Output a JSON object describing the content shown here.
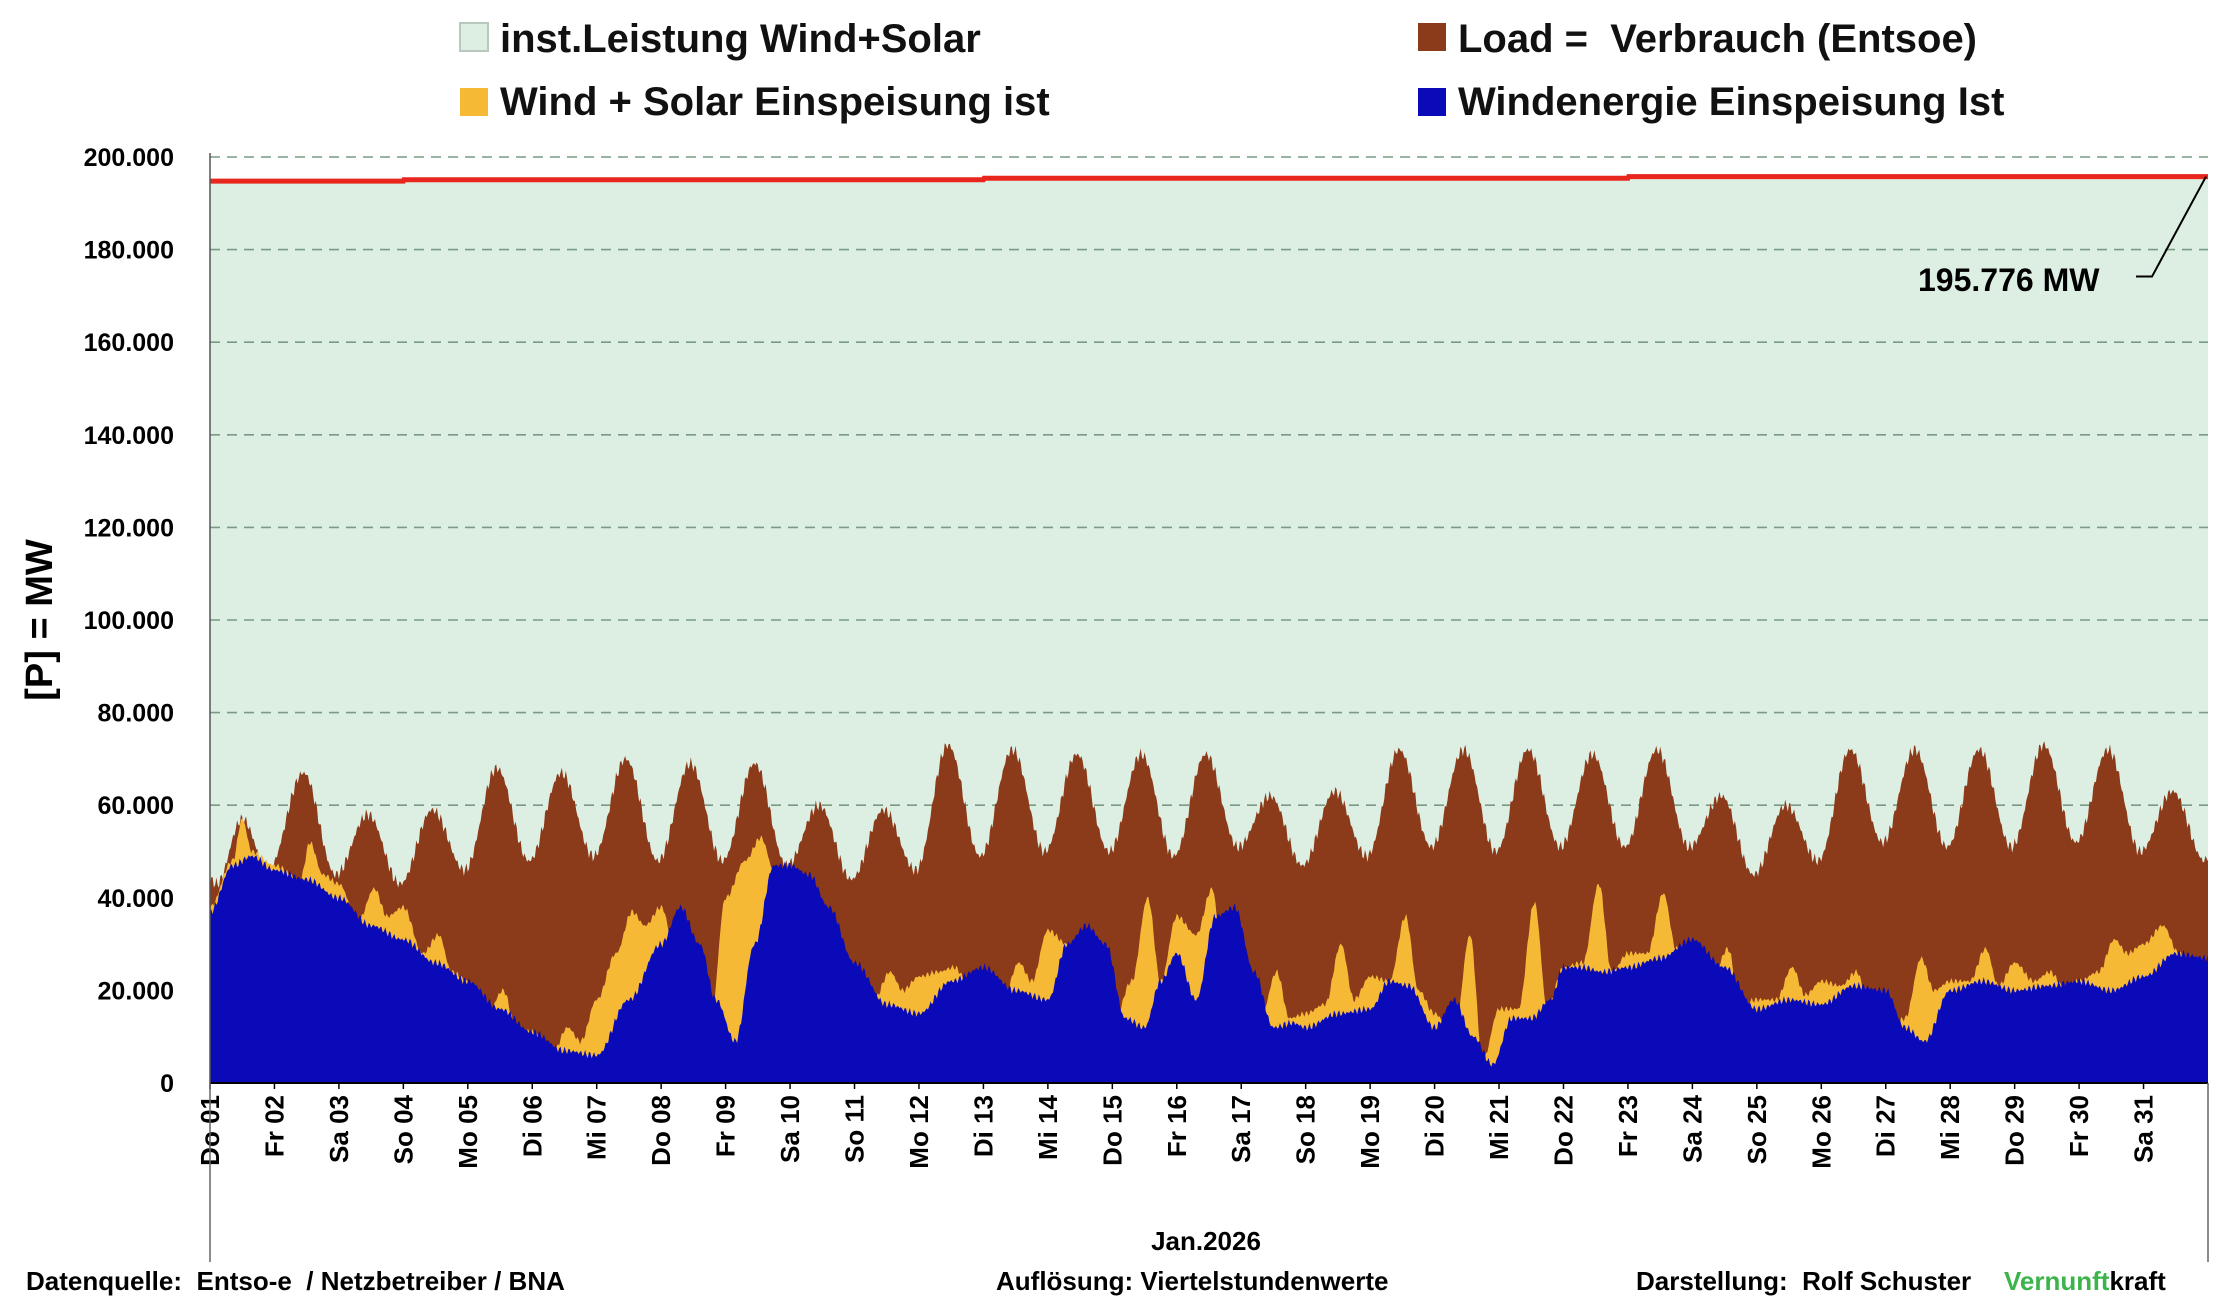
{
  "chart_data": {
    "type": "area",
    "ylabel": "[P] = MW",
    "xlabel": "Jan.2026",
    "ylim": [
      0,
      200000
    ],
    "y_ticks": [
      "0",
      "20.000",
      "40.000",
      "60.000",
      "80.000",
      "100.000",
      "120.000",
      "140.000",
      "160.000",
      "180.000",
      "200.000"
    ],
    "grid": "horizontal dashed",
    "legend": [
      {
        "name": "inst.Leistung Wind+Solar",
        "color": "#dcefe2"
      },
      {
        "name": "Load =  Verbrauch (Entsoe)",
        "color": "#8b3a1a"
      },
      {
        "name": "Wind + Solar Einspeisung ist",
        "color": "#f5b935"
      },
      {
        "name": "Windenergie Einspeisung Ist",
        "color": "#0a0ab8"
      }
    ],
    "colors": {
      "installed_fill": "#dcefe2",
      "installed_line": "#e8261e",
      "load": "#8b3a1a",
      "wind_solar": "#f5b935",
      "wind": "#0a0ab8",
      "grid": "#7a9a82"
    },
    "categories": [
      "Do 01",
      "Fr 02",
      "Sa 03",
      "So 04",
      "Mo 05",
      "Di 06",
      "Mi 07",
      "Do 08",
      "Fr 09",
      "Sa 10",
      "So 11",
      "Mo 12",
      "Di 13",
      "Mi 14",
      "Do 15",
      "Fr 16",
      "Sa 17",
      "So 18",
      "Mo 19",
      "Di 20",
      "Mi 21",
      "Do 22",
      "Fr 23",
      "Sa 24",
      "So 25",
      "Mo 26",
      "Di 27",
      "Mi 28",
      "Do 29",
      "Fr 30",
      "Sa 31"
    ],
    "annotation": "195.776 MW",
    "series": [
      {
        "name": "inst.Leistung Wind+Solar",
        "x": [
          1,
          4,
          4.01,
          13,
          13.01,
          23,
          23.01,
          32
        ],
        "values": [
          194800,
          194800,
          195100,
          195100,
          195400,
          195400,
          195776,
          195776
        ]
      },
      {
        "name": "Load =  Verbrauch (Entsoe)",
        "sample": "peaks/troughs",
        "x": [
          1,
          1.1,
          1.5,
          1.9,
          2.45,
          2.95,
          3.45,
          3.95,
          4.45,
          4.95,
          5.45,
          5.95,
          6.45,
          6.95,
          7.45,
          7.95,
          8.45,
          8.95,
          9.45,
          9.95,
          10.45,
          10.95,
          11.45,
          11.95,
          12.45,
          12.95,
          13.45,
          13.95,
          14.45,
          14.95,
          15.45,
          15.95,
          16.45,
          16.95,
          17.45,
          17.95,
          18.45,
          18.95,
          19.45,
          19.95,
          20.45,
          20.95,
          21.45,
          21.95,
          22.45,
          22.95,
          23.45,
          23.95,
          24.45,
          24.95,
          25.45,
          25.95,
          26.45,
          26.95,
          27.45,
          27.95,
          28.45,
          28.95,
          29.45,
          29.95,
          30.45,
          30.95,
          31.45,
          31.95,
          32
        ],
        "values": [
          44000,
          43000,
          57000,
          46000,
          67000,
          45000,
          58000,
          43000,
          59000,
          46000,
          68000,
          48000,
          67000,
          49000,
          70000,
          48000,
          69000,
          48000,
          69000,
          47000,
          60000,
          44000,
          59000,
          46000,
          73000,
          49000,
          72000,
          50000,
          71000,
          50000,
          71000,
          49000,
          71000,
          51000,
          62000,
          47000,
          63000,
          49000,
          72000,
          51000,
          72000,
          50000,
          72000,
          51000,
          71000,
          51000,
          72000,
          51000,
          62000,
          45000,
          60000,
          48000,
          72000,
          52000,
          72000,
          51000,
          72000,
          51000,
          73000,
          52000,
          72000,
          50000,
          63000,
          48000,
          49000
        ]
      },
      {
        "name": "Wind + Solar Einspeisung ist",
        "sample": "peaks/troughs",
        "x": [
          1,
          1.35,
          1.5,
          1.65,
          2,
          2.4,
          2.55,
          2.75,
          3,
          3.3,
          3.55,
          3.75,
          4,
          4.3,
          4.55,
          4.75,
          5,
          5.3,
          5.55,
          5.75,
          6,
          6.3,
          6.55,
          6.75,
          7,
          7.3,
          7.55,
          7.75,
          8,
          8.3,
          8.55,
          8.75,
          9,
          9.3,
          9.55,
          9.75,
          10,
          10.3,
          10.55,
          10.75,
          11,
          11.3,
          11.55,
          11.75,
          12,
          12.3,
          12.55,
          12.75,
          13,
          13.3,
          13.55,
          13.75,
          14,
          14.3,
          14.55,
          14.75,
          15,
          15.3,
          15.55,
          15.75,
          16,
          16.3,
          16.55,
          16.75,
          17,
          17.3,
          17.55,
          17.75,
          18,
          18.3,
          18.55,
          18.75,
          19,
          19.3,
          19.55,
          19.75,
          20,
          20.3,
          20.55,
          20.75,
          21,
          21.3,
          21.55,
          21.75,
          22,
          22.3,
          22.55,
          22.75,
          23,
          23.3,
          23.55,
          23.75,
          24,
          24.3,
          24.55,
          24.75,
          25,
          25.3,
          25.55,
          25.75,
          26,
          26.3,
          26.55,
          26.75,
          27,
          27.3,
          27.55,
          27.75,
          28,
          28.3,
          28.55,
          28.75,
          29,
          29.3,
          29.55,
          29.75,
          30,
          30.3,
          30.55,
          30.75,
          31,
          31.3,
          31.55,
          31.75,
          32
        ],
        "values": [
          38000,
          48000,
          57000,
          50000,
          47000,
          44000,
          52000,
          45000,
          43000,
          35000,
          42000,
          36000,
          38000,
          28000,
          32000,
          24000,
          22000,
          15000,
          20000,
          12000,
          11000,
          6000,
          12000,
          9000,
          18000,
          28000,
          37000,
          34000,
          38000,
          22000,
          17000,
          11000,
          40000,
          48000,
          53000,
          46000,
          38000,
          25000,
          18000,
          16000,
          15000,
          18000,
          24000,
          20000,
          23000,
          24000,
          25000,
          22000,
          24000,
          18000,
          26000,
          22000,
          33000,
          30000,
          31000,
          20000,
          12000,
          22000,
          40000,
          22000,
          36000,
          32000,
          42000,
          20000,
          12000,
          14000,
          24000,
          14000,
          15000,
          17000,
          30000,
          18000,
          23000,
          22000,
          36000,
          20000,
          15000,
          10000,
          32000,
          5000,
          16000,
          16000,
          39000,
          16000,
          25000,
          26000,
          43000,
          24000,
          28000,
          28000,
          41000,
          29000,
          29000,
          22000,
          29000,
          17000,
          18000,
          18000,
          25000,
          19000,
          22000,
          21000,
          24000,
          16000,
          10000,
          14000,
          27000,
          20000,
          22000,
          22000,
          29000,
          21000,
          26000,
          22000,
          24000,
          21000,
          22000,
          24000,
          31000,
          28000,
          30000,
          34000,
          28000,
          25000,
          24000
        ]
      },
      {
        "name": "Windenergie Einspeisung Ist",
        "sample": "peaks/troughs",
        "x": [
          1,
          1.35,
          1.65,
          2,
          2.5,
          3,
          3.5,
          4,
          4.5,
          5,
          5.5,
          6,
          6.5,
          7,
          7.5,
          8,
          8.3,
          8.6,
          8.85,
          9.15,
          9.45,
          9.75,
          10,
          10.3,
          10.6,
          11,
          11.5,
          12,
          12.5,
          13,
          13.5,
          14,
          14.3,
          14.6,
          14.9,
          15.2,
          15.5,
          15.75,
          16,
          16.3,
          16.6,
          16.9,
          17.2,
          17.5,
          17.8,
          18,
          18.5,
          19,
          19.3,
          19.6,
          20,
          20.3,
          20.6,
          20.9,
          21.2,
          21.5,
          21.8,
          22,
          22.3,
          22.6,
          23,
          23.5,
          24,
          24.5,
          25,
          25.5,
          26,
          26.5,
          27,
          27.3,
          27.6,
          28,
          28.5,
          29,
          29.5,
          30,
          30.5,
          31,
          31.5,
          32
        ],
        "values": [
          37000,
          47000,
          49000,
          46000,
          44000,
          40000,
          34000,
          31000,
          26000,
          22000,
          16000,
          11000,
          7000,
          6000,
          18000,
          30000,
          38000,
          30000,
          18000,
          9000,
          30000,
          47000,
          47000,
          45000,
          38000,
          26000,
          17000,
          15000,
          22000,
          25000,
          20000,
          18000,
          30000,
          34000,
          30000,
          14000,
          12000,
          22000,
          28000,
          18000,
          36000,
          38000,
          24000,
          12000,
          13000,
          12000,
          15000,
          16000,
          22000,
          21000,
          12000,
          18000,
          10000,
          4000,
          14000,
          14000,
          18000,
          25000,
          25000,
          24000,
          25000,
          27000,
          31000,
          25000,
          16000,
          18000,
          17000,
          21000,
          20000,
          12000,
          9000,
          20000,
          22000,
          20000,
          21000,
          22000,
          20000,
          23000,
          28000,
          27000
        ]
      }
    ]
  },
  "footer": {
    "source": "Datenquelle:  Entso-e  / Netzbetreiber / BNA",
    "resolution": "Auflösung: Viertelstundenwerte",
    "author": "Darstellung:  Rolf Schuster",
    "brand_a": "Vernunft",
    "brand_b": "kraft"
  }
}
